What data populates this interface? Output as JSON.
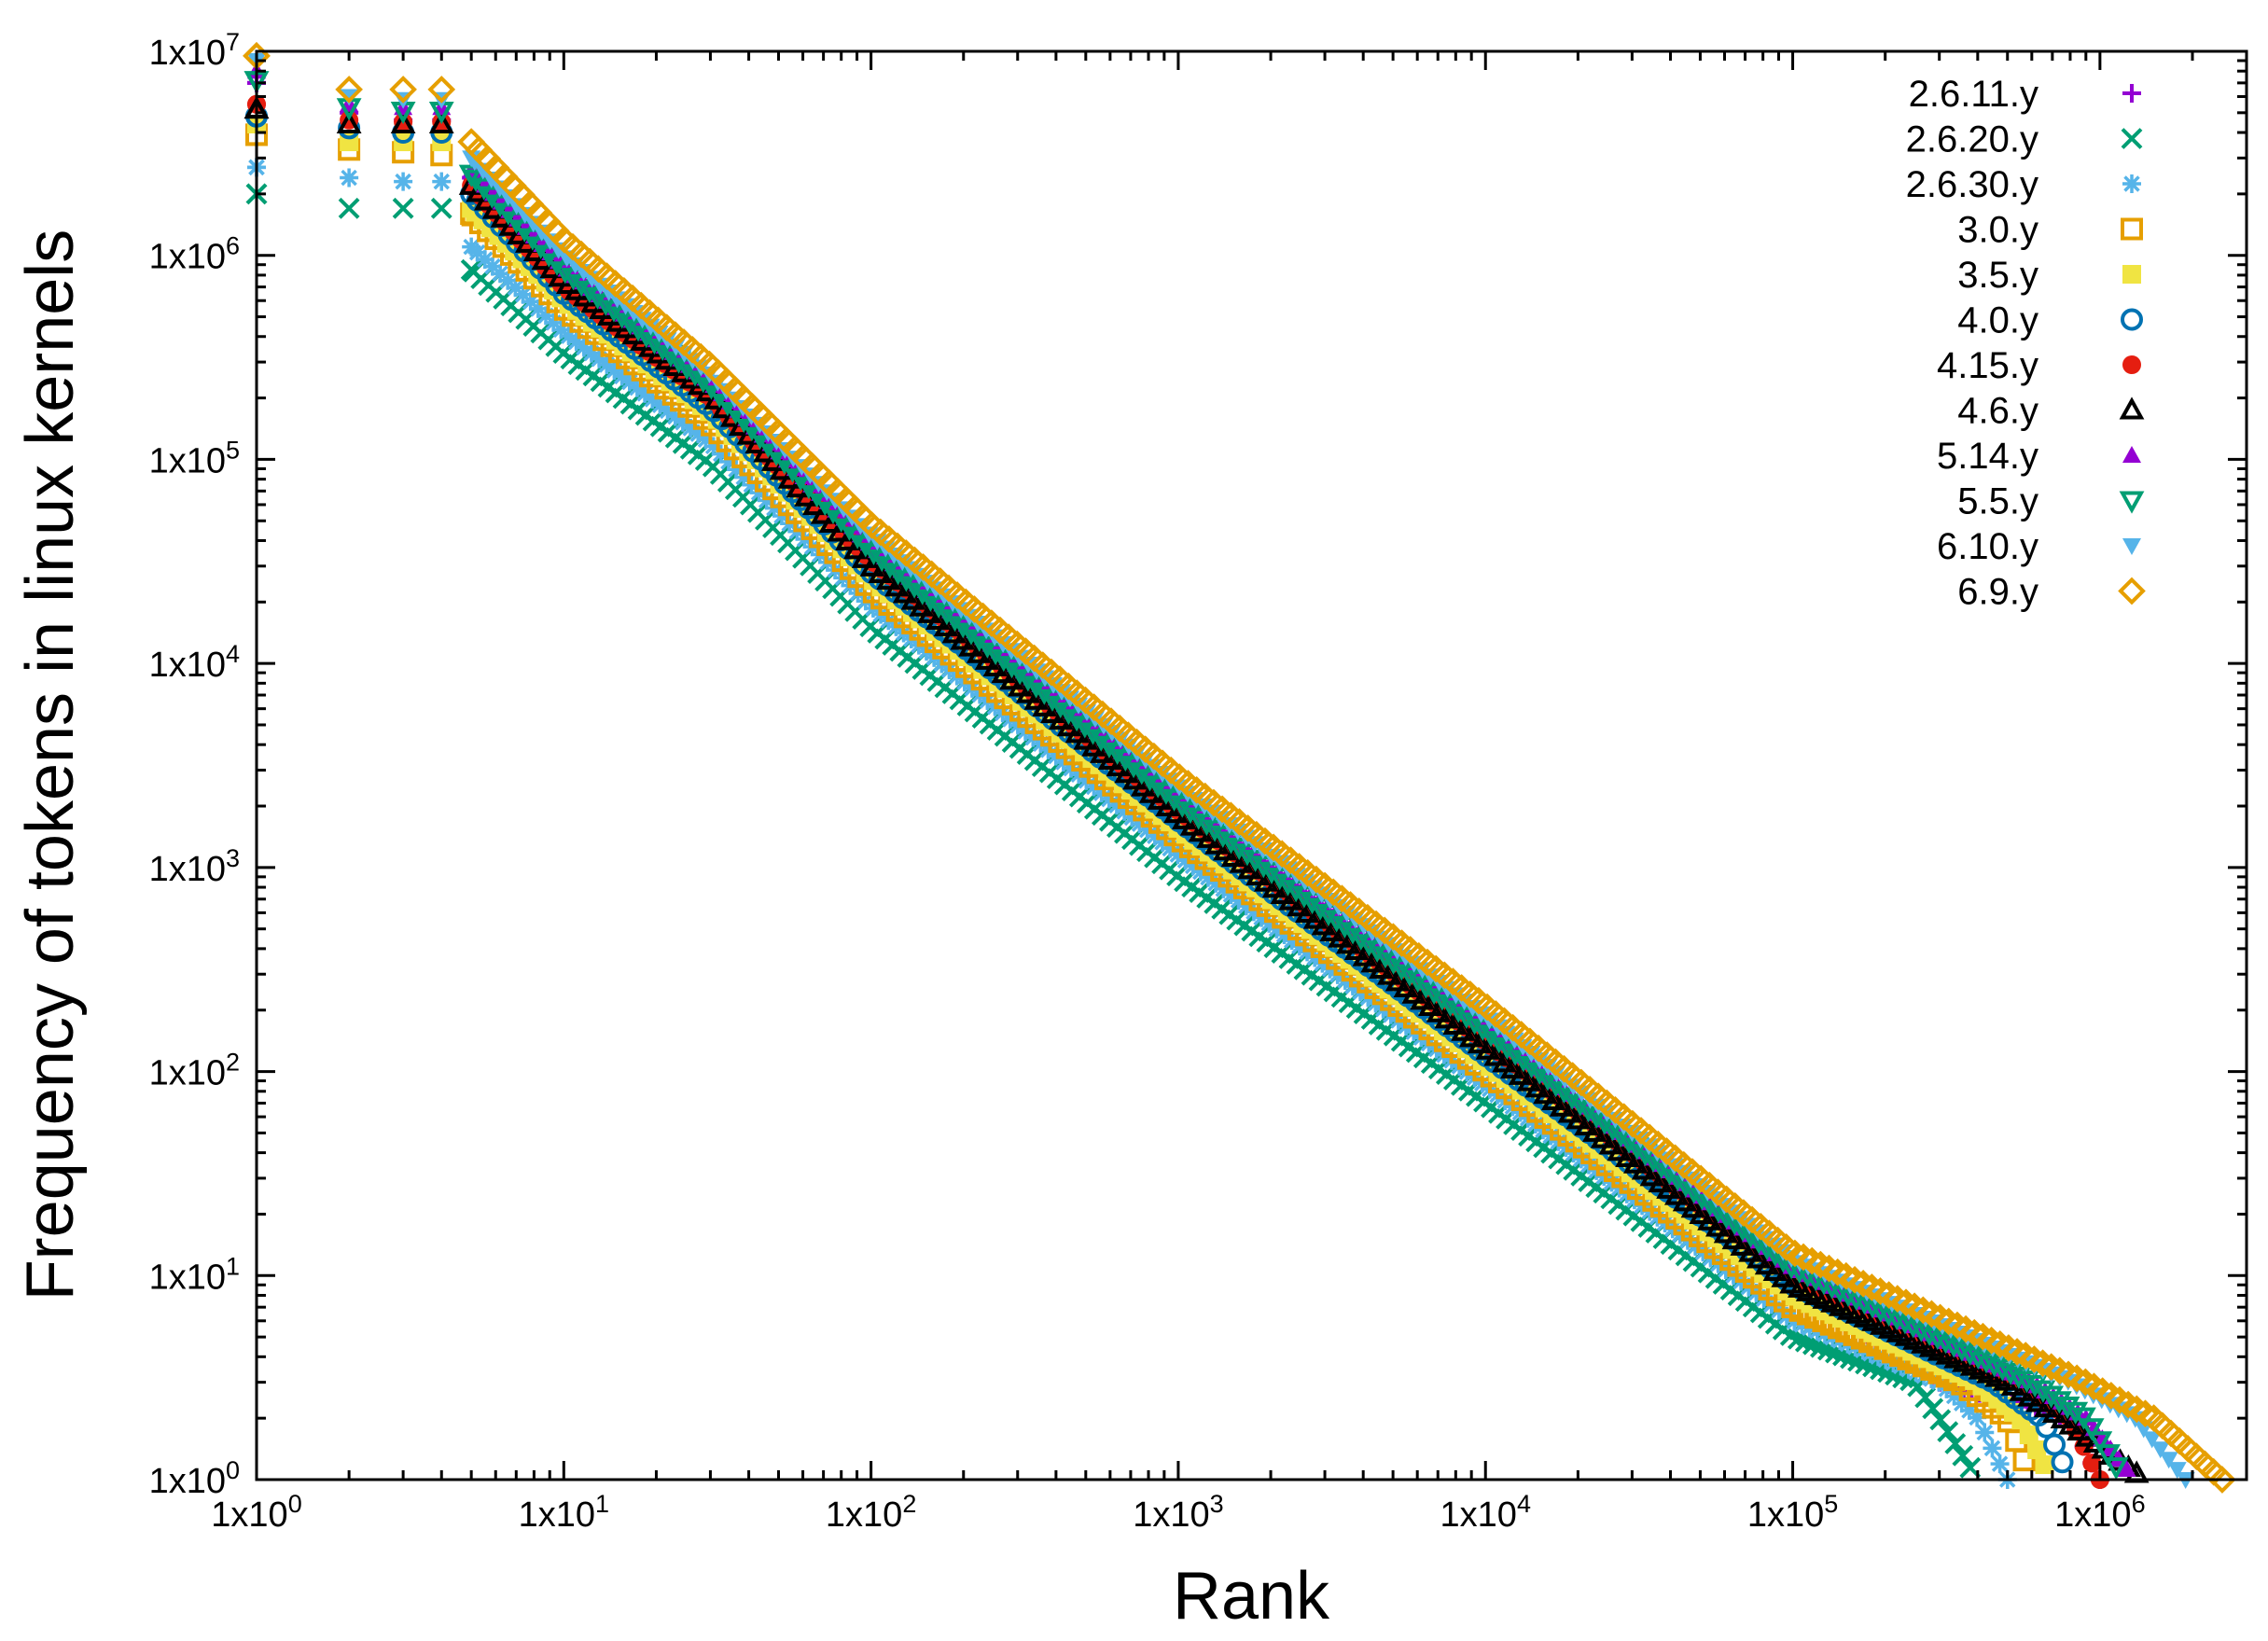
{
  "chart_data": {
    "type": "scatter",
    "title": "",
    "xlabel": "Rank",
    "ylabel": "Frequency of tokens in linux kernels",
    "xscale": "log",
    "yscale": "log",
    "xlim": [
      1,
      3000000
    ],
    "ylim": [
      1,
      10000000
    ],
    "grid": false,
    "legend_position": "top-right",
    "x_ticks": [
      {
        "value": 1,
        "mantissa": "1x10",
        "exp": "0"
      },
      {
        "value": 10,
        "mantissa": "1x10",
        "exp": "1"
      },
      {
        "value": 100,
        "mantissa": "1x10",
        "exp": "2"
      },
      {
        "value": 1000,
        "mantissa": "1x10",
        "exp": "3"
      },
      {
        "value": 10000,
        "mantissa": "1x10",
        "exp": "4"
      },
      {
        "value": 100000,
        "mantissa": "1x10",
        "exp": "5"
      },
      {
        "value": 1000000,
        "mantissa": "1x10",
        "exp": "6"
      }
    ],
    "y_ticks": [
      {
        "value": 1,
        "mantissa": "1x10",
        "exp": "0"
      },
      {
        "value": 10,
        "mantissa": "1x10",
        "exp": "1"
      },
      {
        "value": 100,
        "mantissa": "1x10",
        "exp": "2"
      },
      {
        "value": 1000,
        "mantissa": "1x10",
        "exp": "3"
      },
      {
        "value": 10000,
        "mantissa": "1x10",
        "exp": "4"
      },
      {
        "value": 100000,
        "mantissa": "1x10",
        "exp": "5"
      },
      {
        "value": 1000000,
        "mantissa": "1x10",
        "exp": "6"
      },
      {
        "value": 10000000,
        "mantissa": "1x10",
        "exp": "7"
      }
    ],
    "series": [
      {
        "name": "2.6.11.y",
        "marker": "plus",
        "color": "#9400d3",
        "points": [
          [
            1,
            7000000
          ],
          [
            2,
            5000000
          ],
          [
            3,
            4600000
          ],
          [
            4,
            4600000
          ],
          [
            5,
            2400000
          ],
          [
            10,
            800000
          ],
          [
            30,
            200000
          ],
          [
            100,
            32000
          ],
          [
            1000,
            1900
          ],
          [
            10000,
            140
          ],
          [
            100000,
            9
          ],
          [
            300000,
            3
          ],
          [
            800000,
            2
          ],
          [
            1000000,
            1
          ]
        ]
      },
      {
        "name": "2.6.20.y",
        "marker": "cross",
        "color": "#009e73",
        "points": [
          [
            1,
            2000000
          ],
          [
            2,
            1700000
          ],
          [
            3,
            1700000
          ],
          [
            4,
            1700000
          ],
          [
            5,
            850000
          ],
          [
            10,
            330000
          ],
          [
            30,
            95000
          ],
          [
            100,
            15000
          ],
          [
            1000,
            900
          ],
          [
            10000,
            70
          ],
          [
            100000,
            5
          ],
          [
            250000,
            3
          ],
          [
            300000,
            2
          ],
          [
            400000,
            1
          ]
        ]
      },
      {
        "name": "2.6.30.y",
        "marker": "asterisk",
        "color": "#56b4e9",
        "points": [
          [
            1,
            2700000
          ],
          [
            2,
            2400000
          ],
          [
            3,
            2300000
          ],
          [
            4,
            2300000
          ],
          [
            5,
            1100000
          ],
          [
            10,
            420000
          ],
          [
            30,
            120000
          ],
          [
            100,
            19000
          ],
          [
            1000,
            1150
          ],
          [
            10000,
            85
          ],
          [
            100000,
            6
          ],
          [
            300000,
            3
          ],
          [
            400000,
            2
          ],
          [
            500000,
            1
          ]
        ]
      },
      {
        "name": "3.0.y",
        "marker": "square-open",
        "color": "#e69f00",
        "points": [
          [
            1,
            3900000
          ],
          [
            2,
            3300000
          ],
          [
            3,
            3200000
          ],
          [
            4,
            3100000
          ],
          [
            5,
            1600000
          ],
          [
            10,
            550000
          ],
          [
            30,
            150000
          ],
          [
            100,
            23000
          ],
          [
            1000,
            1400
          ],
          [
            10000,
            100
          ],
          [
            100000,
            7
          ],
          [
            350000,
            3
          ],
          [
            500000,
            2
          ],
          [
            600000,
            1
          ]
        ]
      },
      {
        "name": "3.5.y",
        "marker": "square-filled",
        "color": "#f0e442",
        "points": [
          [
            1,
            4400000
          ],
          [
            2,
            3600000
          ],
          [
            3,
            3600000
          ],
          [
            4,
            3600000
          ],
          [
            5,
            1700000
          ],
          [
            10,
            600000
          ],
          [
            30,
            170000
          ],
          [
            100,
            26000
          ],
          [
            1000,
            1550
          ],
          [
            10000,
            110
          ],
          [
            100000,
            8
          ],
          [
            400000,
            3
          ],
          [
            550000,
            2
          ],
          [
            700000,
            1
          ]
        ]
      },
      {
        "name": "4.0.y",
        "marker": "circle-open",
        "color": "#0072b2",
        "points": [
          [
            1,
            4800000
          ],
          [
            2,
            4200000
          ],
          [
            3,
            4000000
          ],
          [
            4,
            4000000
          ],
          [
            5,
            2000000
          ],
          [
            10,
            650000
          ],
          [
            30,
            180000
          ],
          [
            100,
            28000
          ],
          [
            1000,
            1700
          ],
          [
            10000,
            120
          ],
          [
            100000,
            9
          ],
          [
            450000,
            3
          ],
          [
            650000,
            2
          ],
          [
            800000,
            1
          ]
        ]
      },
      {
        "name": "4.15.y",
        "marker": "circle-filled",
        "color": "#e51e10",
        "points": [
          [
            1,
            5500000
          ],
          [
            2,
            4600000
          ],
          [
            3,
            4500000
          ],
          [
            4,
            4500000
          ],
          [
            5,
            2200000
          ],
          [
            10,
            700000
          ],
          [
            30,
            200000
          ],
          [
            100,
            32000
          ],
          [
            1000,
            1900
          ],
          [
            10000,
            140
          ],
          [
            100000,
            10
          ],
          [
            550000,
            3
          ],
          [
            800000,
            2
          ],
          [
            1000000,
            1
          ]
        ]
      },
      {
        "name": "4.6.y",
        "marker": "triangle-open",
        "color": "#000000",
        "points": [
          [
            1,
            5200000
          ],
          [
            2,
            4400000
          ],
          [
            3,
            4400000
          ],
          [
            4,
            4400000
          ],
          [
            5,
            2200000
          ],
          [
            10,
            750000
          ],
          [
            30,
            210000
          ],
          [
            100,
            30000
          ],
          [
            1000,
            1800
          ],
          [
            10000,
            130
          ],
          [
            100000,
            9
          ],
          [
            500000,
            3
          ],
          [
            750000,
            2
          ],
          [
            1400000,
            1
          ]
        ]
      },
      {
        "name": "5.14.y",
        "marker": "triangle-filled",
        "color": "#9400d3",
        "points": [
          [
            1,
            8000000
          ],
          [
            2,
            5500000
          ],
          [
            3,
            5300000
          ],
          [
            4,
            5300000
          ],
          [
            5,
            2600000
          ],
          [
            10,
            880000
          ],
          [
            30,
            240000
          ],
          [
            100,
            38000
          ],
          [
            1000,
            2200
          ],
          [
            10000,
            165
          ],
          [
            100000,
            11
          ],
          [
            600000,
            3
          ],
          [
            900000,
            2
          ],
          [
            1300000,
            1
          ]
        ]
      },
      {
        "name": "5.5.y",
        "marker": "triangle-down-open",
        "color": "#009e73",
        "points": [
          [
            1,
            7200000
          ],
          [
            2,
            5300000
          ],
          [
            3,
            5100000
          ],
          [
            4,
            5100000
          ],
          [
            5,
            2500000
          ],
          [
            10,
            850000
          ],
          [
            30,
            230000
          ],
          [
            100,
            36000
          ],
          [
            1000,
            2100
          ],
          [
            10000,
            160
          ],
          [
            100000,
            11
          ],
          [
            600000,
            3
          ],
          [
            900000,
            2
          ],
          [
            1200000,
            1
          ]
        ]
      },
      {
        "name": "6.10.y",
        "marker": "triangle-down-filled",
        "color": "#56b4e9",
        "points": [
          [
            1,
            9000000
          ],
          [
            2,
            6000000
          ],
          [
            3,
            5800000
          ],
          [
            4,
            5800000
          ],
          [
            5,
            3000000
          ],
          [
            10,
            1000000
          ],
          [
            30,
            260000
          ],
          [
            100,
            42000
          ],
          [
            1000,
            2500
          ],
          [
            10000,
            185
          ],
          [
            100000,
            12
          ],
          [
            800000,
            3
          ],
          [
            1300000,
            2
          ],
          [
            1900000,
            1
          ]
        ]
      },
      {
        "name": "6.9.y",
        "marker": "diamond-open",
        "color": "#e69f00",
        "points": [
          [
            1,
            9500000
          ],
          [
            2,
            6500000
          ],
          [
            3,
            6500000
          ],
          [
            4,
            6500000
          ],
          [
            5,
            3600000
          ],
          [
            10,
            1200000
          ],
          [
            30,
            290000
          ],
          [
            100,
            48000
          ],
          [
            1000,
            2800
          ],
          [
            10000,
            210
          ],
          [
            100000,
            13
          ],
          [
            900000,
            3
          ],
          [
            1500000,
            2
          ],
          [
            2500000,
            1
          ]
        ]
      }
    ]
  }
}
